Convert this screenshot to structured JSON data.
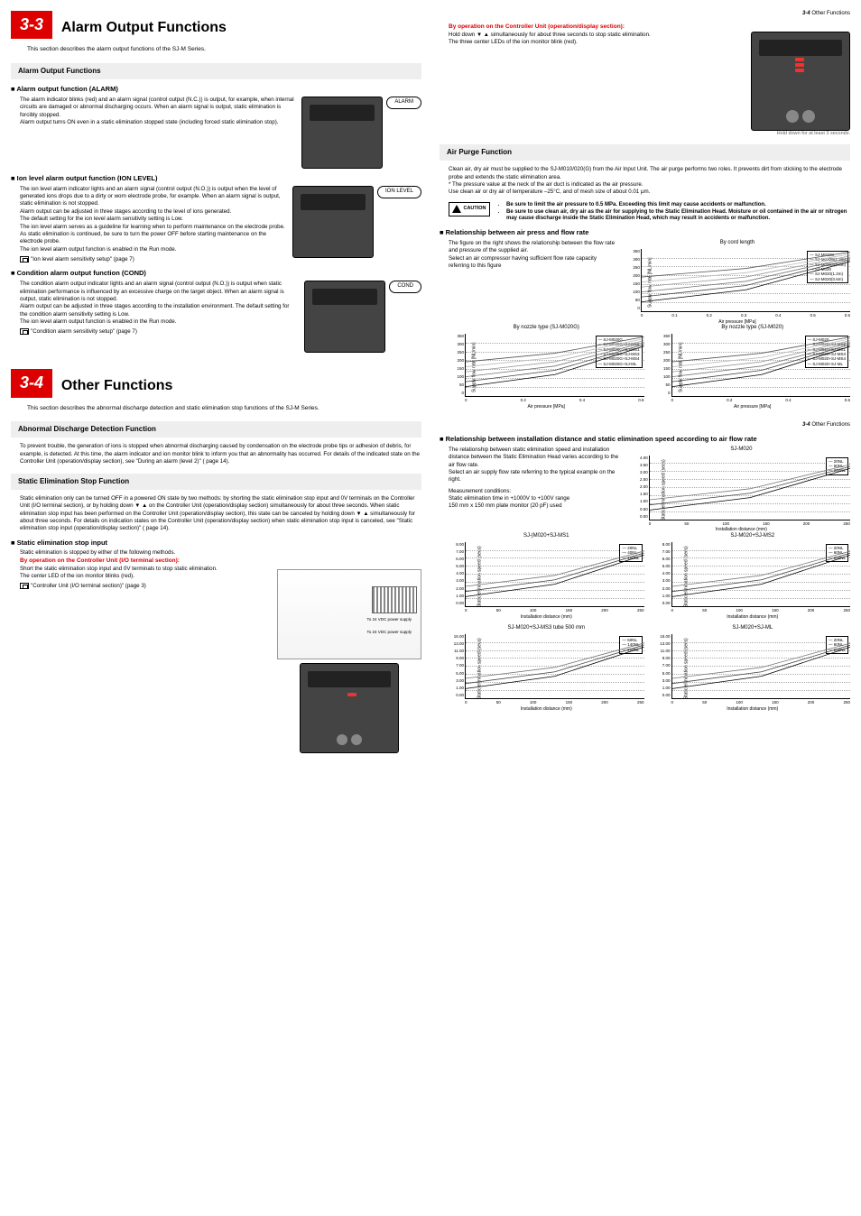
{
  "page_refs": {
    "top_right": "3-4 Other Functions",
    "mid_right": "3-4 Other Functions"
  },
  "s33": {
    "num": "3-3",
    "title": "Alarm Output Functions",
    "intro": "This section describes the alarm output functions of the SJ-M Series.",
    "band": "Alarm Output Functions",
    "alarm": {
      "h": "Alarm output function (ALARM)",
      "p1": "The alarm indicator blinks (red) and an alarm signal (control output (N.C.)) is output, for example, when internal circuits are damaged or abnormal discharging occurs. When an alarm signal is output, static elimination is forcibly stopped.",
      "p2": "Alarm output turns ON even in a static elimination stopped state (including forced static elimination stop).",
      "bubble": "ALARM"
    },
    "ion": {
      "h": "Ion level alarm output function (ION LEVEL)",
      "p1": "The ion level alarm indicator lights and an alarm signal (control output (N.O.)) is output when the level of generated ions drops due to a dirty or worn electrode probe, for example. When an alarm signal is output, static elimination is not stopped.",
      "p2": "Alarm output can be adjusted in three stages according to the level of ions generated.",
      "p3": "The default setting for the ion level alarm sensitivity setting is Low.",
      "p4": "The ion level alarm serves as a guideline for learning when to perform maintenance on the electrode probe. As static elimination is continued, be sure to turn the power OFF before starting maintenance on the electrode probe.",
      "p5": "The ion level alarm output function is enabled in the Run mode.",
      "ref": "\"Ion level alarm sensitivity setup\" (page 7)",
      "bubble": "ION LEVEL"
    },
    "cond": {
      "h": "Condition alarm output function (COND)",
      "p1": "The condition alarm output indicator lights and an alarm signal (control output (N.O.)) is output when static elimination performance is influenced by an excessive charge on the target object. When an alarm signal is output, static elimination is not stopped.",
      "p2": "Alarm output can be adjusted in three stages according to the installation environment. The default setting for the condition alarm sensitivity setting is Low.",
      "p3": "The ion level alarm output function is enabled in the Run mode.",
      "ref": "\"Condition alarm sensitivity setup\" (page 7)",
      "bubble": "COND"
    }
  },
  "s34": {
    "num": "3-4",
    "title": "Other Functions",
    "intro": "This section describes the abnormal discharge detection and static elimination stop functions of the SJ-M Series.",
    "band1": "Abnormal Discharge Detection Function",
    "abn": "To prevent trouble, the generation of ions is stopped when abnormal discharging caused by condensation on the electrode probe tips or adhesion of debris, for example, is detected. At this time, the alarm indicator and ion monitor blink to inform you that an abnormality has occurred. For details of the indicated state on the Controller Unit (operation/display section), see \"During an alarm (level 2)\" (    page 14).",
    "band2": "Static Elimination Stop Function",
    "stop": "Static elimination only can be turned OFF in a powered ON state by two methods: by shorting the static elimination stop input and 0V terminals on the Controller Unit (I/O terminal section), or by holding down ▼ ▲ on the Controller Unit (operation/display section) simultaneously for about three seconds. When static elimination stop input has been performed on the Controller Unit (operation/display section), this state can be canceled by holding down ▼ ▲ simultaneously for about three seconds. For details on indication states on the Controller Unit (operation/display section) when static elimination stop input is canceled, see \"Static elimination stop input (operation/display section)\" (    page 14).",
    "stopin": {
      "h": "Static elimination stop input",
      "p0": "Static elimination is stopped by either of the following methods.",
      "r1": "By operation on the Controller Unit (I/O terminal section):",
      "p1": "Short the static elimination stop input and 0V terminals to stop static elimination.",
      "p2": "The center LED of the ion monitor blinks (red).",
      "ref": "\"Controller Unit (I/O terminal section)\" (page 3)",
      "diag1": "To 24 VDC power supply",
      "diag2": "To 24 VDC power supply"
    }
  },
  "right": {
    "r2": "By operation on the Controller Unit (operation/display section):",
    "p1": "Hold down ▼ ▲ simultaneously for about three seconds to stop static elimination.",
    "p2": "The three center LEDs of the ion monitor blink (red).",
    "note": "Hold down for at least 3 seconds.",
    "band": "Air Purge Function",
    "air1": "Clean air, dry air must be supplied to the SJ-M010/020(G) from the Air Input Unit. The air purge performs two roles. It prevents dirt from sticking to the electrode probe and extends the static elimination area.",
    "air2": "* The pressure value at the neck of the air duct is indicated as the air pressure.",
    "air3": "Use clean air or dry air of temperature –25°C, and of mesh size of about 0.01 μm.",
    "caution_label": "CAUTION",
    "c1": "Be sure to limit the air pressure to 0.5 MPa. Exceeding this limit may cause accidents or malfunction.",
    "c2": "Be sure to use clean air, dry air as the air for supplying to the Static Elimination Head. Moisture or oil contained in the air or nitrogen may cause discharge inside the Static Elimination Head, which may result in accidents or malfunction.",
    "rel1": {
      "h": "Relationship between air press and flow rate",
      "p1": "The figure on the right shows the relationship between the flow rate and pressure of the supplied air.",
      "p2": "Select an air compressor having sufficient flow rate capacity referring to this figure"
    },
    "charts": {
      "cord": {
        "title": "By cord length",
        "y_label": "Supply flow rate [NL/min]",
        "x_label": "Air pressure [MPa]",
        "y_ticks": [
          "350",
          "300",
          "250",
          "200",
          "150",
          "100",
          "50",
          "0"
        ],
        "x_ticks": [
          "0",
          "0.1",
          "0.2",
          "0.3",
          "0.4",
          "0.5",
          "0.6"
        ],
        "legend": [
          "SJ-M020S",
          "SJ-M020S(1.2m)",
          "SJ-M020S(0.8m)",
          "SJ-M020",
          "SJ-M020(1.2m)",
          "SJ-M020(0.6m)"
        ]
      },
      "noz_g": {
        "title": "By nozzle type (SJ-M020G)",
        "y_ticks": [
          "350",
          "300",
          "250",
          "200",
          "150",
          "100",
          "50",
          "0"
        ],
        "x_ticks": [
          "0",
          "0.2",
          "0.4",
          "0.6"
        ],
        "x_label": "Air pressure [MPa]",
        "y_label": "Supply flow rate [NL/min]",
        "legend": [
          "SJ-M020G",
          "SJ-M020G+SJ-MS2",
          "SJ-M020G+SJ-MS1",
          "SJ-M020G+SJ-MS3",
          "SJ-M020G+SJ-MS4",
          "SJ-M020G+SJ-ML"
        ]
      },
      "noz": {
        "title": "By nozzle type (SJ-M020)",
        "y_ticks": [
          "350",
          "300",
          "250",
          "200",
          "150",
          "100",
          "50",
          "0"
        ],
        "x_ticks": [
          "0",
          "0.2",
          "0.4",
          "0.6"
        ],
        "x_label": "Air pressure [MPa]",
        "y_label": "Supply flow rate [NL/min]",
        "legend": [
          "SJ-M020",
          "SJ-M020+SJ-MS2",
          "SJ-M020+SJ-MS1",
          "SJ-M020+SJ-MS3",
          "SJ-M020+SJ-MS4",
          "SJ-M020+SJ-ML"
        ]
      }
    },
    "rel2": {
      "h": "Relationship between installation distance and static elimination speed according to air flow rate",
      "p1": "The relationship between static elimination speed and installation distance between the Static Elimination Head varies according to the air flow rate.",
      "p2": "Select an air supply flow rate referring to the typical example on the right.",
      "mh": "Measurement conditions:",
      "m1": "Static elimination time in +1000V to +100V range",
      "m2": "150 mm x 150 mm plate monitor (20 pF) used"
    },
    "sp_charts": {
      "y_label": "Static elimination speed (secs)",
      "x_label": "Installation distance (mm)",
      "c0": {
        "title": "SJ-M020",
        "y_ticks": [
          "4.00",
          "3.50",
          "3.00",
          "2.50",
          "2.00",
          "1.50",
          "1.00",
          "0.50",
          "0.00"
        ],
        "x_ticks": [
          "0",
          "50",
          "100",
          "150",
          "200",
          "250"
        ],
        "legend": [
          "20NL",
          "60NL",
          "250NL"
        ]
      },
      "c1": {
        "title": "SJ-|M020+SJ-MS1",
        "y_ticks": [
          "8.00",
          "7.00",
          "6.00",
          "5.00",
          "4.00",
          "3.00",
          "2.00",
          "1.00",
          "0.00"
        ],
        "x_ticks": [
          "0",
          "50",
          "100",
          "150",
          "200",
          "250"
        ],
        "legend": [
          "20NL",
          "40NL",
          "160NL"
        ]
      },
      "c2": {
        "title": "SJ-M020+SJ-MS2",
        "y_ticks": [
          "8.00",
          "7.00",
          "6.00",
          "5.00",
          "4.00",
          "3.00",
          "2.00",
          "1.00",
          "0.00"
        ],
        "x_ticks": [
          "0",
          "50",
          "100",
          "150",
          "200",
          "250"
        ],
        "legend": [
          "20NL",
          "60NL",
          "250NL"
        ]
      },
      "c3": {
        "title": "SJ-M020+SJ-MS3 tube 500 mm",
        "y_ticks": [
          "15.00",
          "13.00",
          "11.00",
          "9.00",
          "7.00",
          "5.00",
          "3.00",
          "1.00",
          "0.00"
        ],
        "x_ticks": [
          "0",
          "50",
          "100",
          "150",
          "200",
          "250"
        ],
        "legend": [
          "60NL",
          "140NL",
          "250NL"
        ]
      },
      "c4": {
        "title": "SJ-M020+SJ-ML",
        "y_ticks": [
          "15.00",
          "13.00",
          "11.00",
          "9.00",
          "7.00",
          "5.00",
          "3.00",
          "1.00",
          "0.00"
        ],
        "x_ticks": [
          "0",
          "50",
          "100",
          "150",
          "200",
          "250"
        ],
        "legend": [
          "20NL",
          "60NL",
          "250NL"
        ]
      }
    }
  }
}
